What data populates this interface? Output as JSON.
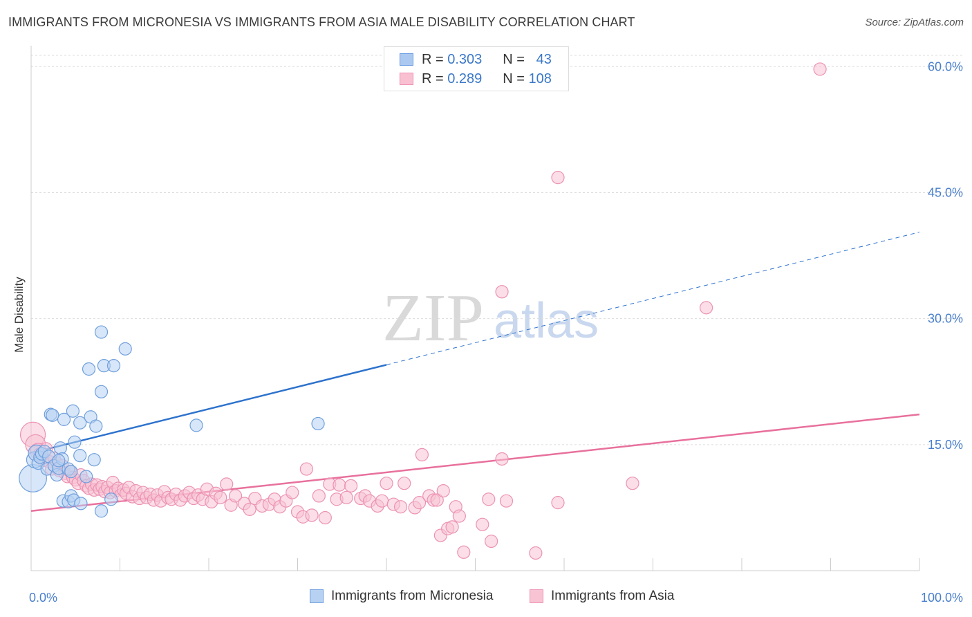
{
  "title": "IMMIGRANTS FROM MICRONESIA VS IMMIGRANTS FROM ASIA MALE DISABILITY CORRELATION CHART",
  "source": "Source: ZipAtlas.com",
  "watermark": {
    "zip": "ZIP",
    "atlas": "atlas"
  },
  "legend": {
    "r_label": "R =",
    "n_label": "N =",
    "items": [
      {
        "r": "0.303",
        "n": "43",
        "fill": "#aac8f0",
        "stroke": "#6a9ee0"
      },
      {
        "r": "0.289",
        "n": "108",
        "fill": "#f9c0d2",
        "stroke": "#ee8eb0"
      }
    ]
  },
  "colors": {
    "blue_fill": "#b7d1f3",
    "blue_stroke": "#6f9fdc",
    "blue_line": "#2d72cc",
    "pink_fill": "#f8c3d3",
    "pink_stroke": "#ec92b3",
    "pink_line": "#e8709c",
    "grid": "#dddddd",
    "tick_text": "#4a7fcc"
  },
  "chart_data": {
    "type": "scatter",
    "title": "IMMIGRANTS FROM MICRONESIA VS IMMIGRANTS FROM ASIA MALE DISABILITY CORRELATION CHART",
    "xlabel": "",
    "ylabel": "Male Disability",
    "xlim": [
      0,
      100
    ],
    "ylim": [
      0,
      62
    ],
    "x_tick_labels": [
      "0.0%",
      "100.0%"
    ],
    "y_ticks": [
      15,
      30,
      45,
      60
    ],
    "y_tick_labels": [
      "15.0%",
      "30.0%",
      "45.0%",
      "60.0%"
    ],
    "grid": true,
    "series": [
      {
        "name": "Immigrants from Micronesia",
        "r": 0.303,
        "n": 43,
        "trend": {
          "x0": 0,
          "y0": 14.0,
          "x1": 40,
          "y1": 24.5,
          "dashed_to_x": 100,
          "dashed_to_y": 40.3
        },
        "points": [
          [
            0.2,
            11.0,
            2.2
          ],
          [
            0.4,
            13.2,
            1.3
          ],
          [
            0.6,
            14.0,
            1.3
          ],
          [
            0.8,
            12.8,
            1.0
          ],
          [
            1.0,
            13.5,
            1.0
          ],
          [
            1.2,
            13.9,
            1.0
          ],
          [
            1.5,
            14.2,
            1.0
          ],
          [
            1.8,
            12.1,
            1.0
          ],
          [
            2.0,
            13.6,
            1.0
          ],
          [
            2.2,
            18.6,
            1.0
          ],
          [
            2.4,
            18.5,
            1.0
          ],
          [
            2.6,
            12.5,
            1.0
          ],
          [
            2.9,
            11.4,
            1.0
          ],
          [
            3.1,
            12.2,
            1.0
          ],
          [
            3.3,
            14.6,
            1.0
          ],
          [
            3.5,
            13.3,
            1.0
          ],
          [
            3.1,
            13.1,
            1.0
          ],
          [
            3.7,
            18.0,
            1.0
          ],
          [
            4.2,
            12.1,
            1.0
          ],
          [
            4.5,
            11.8,
            1.0
          ],
          [
            4.7,
            19.0,
            1.0
          ],
          [
            4.9,
            15.3,
            1.0
          ],
          [
            3.6,
            8.3,
            1.0
          ],
          [
            4.2,
            8.2,
            1.0
          ],
          [
            4.5,
            8.9,
            1.0
          ],
          [
            4.8,
            8.4,
            1.0
          ],
          [
            5.5,
            17.6,
            1.0
          ],
          [
            5.6,
            8.0,
            1.0
          ],
          [
            5.5,
            13.7,
            1.0
          ],
          [
            6.2,
            11.2,
            1.0
          ],
          [
            6.5,
            24.0,
            1.0
          ],
          [
            6.7,
            18.3,
            1.0
          ],
          [
            7.1,
            13.2,
            1.0
          ],
          [
            7.3,
            17.2,
            1.0
          ],
          [
            7.9,
            28.4,
            1.0
          ],
          [
            7.9,
            21.3,
            1.0
          ],
          [
            7.9,
            7.1,
            1.0
          ],
          [
            8.2,
            24.4,
            1.0
          ],
          [
            9.0,
            8.5,
            1.0
          ],
          [
            9.3,
            24.4,
            1.0
          ],
          [
            10.6,
            26.4,
            1.0
          ],
          [
            18.6,
            17.3,
            1.0
          ],
          [
            32.3,
            17.5,
            1.0
          ]
        ]
      },
      {
        "name": "Immigrants from Asia",
        "r": 0.289,
        "n": 108,
        "trend": {
          "x0": 0,
          "y0": 7.1,
          "x1": 100,
          "y1": 18.6
        },
        "points": [
          [
            0.2,
            16.2,
            2.0
          ],
          [
            0.5,
            15.0,
            1.6
          ],
          [
            0.8,
            14.2,
            1.3
          ],
          [
            1.1,
            13.8,
            1.2
          ],
          [
            1.4,
            13.2,
            1.1
          ],
          [
            1.7,
            14.5,
            1.0
          ],
          [
            2.0,
            13.0,
            1.0
          ],
          [
            2.3,
            12.1,
            1.0
          ],
          [
            2.6,
            13.4,
            1.0
          ],
          [
            2.9,
            12.8,
            1.0
          ],
          [
            3.2,
            11.9,
            1.0
          ],
          [
            3.5,
            12.5,
            1.0
          ],
          [
            3.8,
            11.6,
            1.0
          ],
          [
            4.1,
            11.2,
            1.0
          ],
          [
            4.4,
            11.8,
            1.0
          ],
          [
            4.7,
            11.1,
            1.0
          ],
          [
            5.0,
            10.8,
            1.0
          ],
          [
            5.3,
            10.4,
            1.0
          ],
          [
            5.6,
            11.4,
            1.0
          ],
          [
            5.9,
            10.7,
            1.0
          ],
          [
            6.2,
            10.1,
            1.0
          ],
          [
            6.5,
            9.8,
            1.0
          ],
          [
            6.8,
            10.3,
            1.0
          ],
          [
            7.1,
            9.6,
            1.0
          ],
          [
            7.4,
            10.2,
            1.0
          ],
          [
            7.7,
            9.7,
            1.0
          ],
          [
            8.0,
            10.0,
            1.0
          ],
          [
            8.3,
            9.4,
            1.0
          ],
          [
            8.6,
            9.9,
            1.0
          ],
          [
            8.9,
            9.3,
            1.0
          ],
          [
            9.2,
            10.5,
            1.0
          ],
          [
            9.5,
            9.5,
            1.0
          ],
          [
            9.8,
            9.8,
            1.0
          ],
          [
            10.1,
            9.0,
            1.0
          ],
          [
            10.4,
            9.6,
            1.0
          ],
          [
            10.7,
            9.2,
            1.0
          ],
          [
            11.0,
            9.9,
            1.0
          ],
          [
            11.4,
            8.8,
            1.0
          ],
          [
            11.8,
            9.5,
            1.0
          ],
          [
            12.2,
            8.6,
            1.0
          ],
          [
            12.6,
            9.3,
            1.0
          ],
          [
            13.0,
            8.7,
            1.0
          ],
          [
            13.4,
            9.1,
            1.0
          ],
          [
            13.8,
            8.4,
            1.0
          ],
          [
            14.2,
            9.0,
            1.0
          ],
          [
            14.6,
            8.3,
            1.0
          ],
          [
            15.0,
            9.4,
            1.0
          ],
          [
            15.4,
            8.7,
            1.0
          ],
          [
            15.8,
            8.5,
            1.0
          ],
          [
            16.3,
            9.1,
            1.0
          ],
          [
            16.8,
            8.4,
            1.0
          ],
          [
            17.3,
            8.9,
            1.0
          ],
          [
            17.8,
            9.3,
            1.0
          ],
          [
            18.3,
            8.6,
            1.0
          ],
          [
            18.8,
            9.0,
            1.0
          ],
          [
            19.3,
            8.5,
            1.0
          ],
          [
            19.8,
            9.7,
            1.0
          ],
          [
            20.3,
            8.2,
            1.0
          ],
          [
            20.8,
            9.2,
            1.0
          ],
          [
            21.3,
            8.7,
            1.0
          ],
          [
            22.0,
            10.3,
            1.0
          ],
          [
            22.5,
            7.8,
            1.0
          ],
          [
            23.0,
            8.9,
            1.0
          ],
          [
            24.0,
            8.0,
            1.0
          ],
          [
            24.6,
            7.3,
            1.0
          ],
          [
            25.2,
            8.6,
            1.0
          ],
          [
            26.0,
            7.7,
            1.0
          ],
          [
            26.8,
            7.9,
            1.0
          ],
          [
            27.4,
            8.5,
            1.0
          ],
          [
            28.0,
            7.6,
            1.0
          ],
          [
            28.7,
            8.3,
            1.0
          ],
          [
            29.4,
            9.3,
            1.0
          ],
          [
            30.0,
            7.0,
            1.0
          ],
          [
            30.6,
            6.4,
            1.0
          ],
          [
            31.0,
            12.1,
            1.0
          ],
          [
            31.6,
            6.6,
            1.0
          ],
          [
            32.4,
            8.9,
            1.0
          ],
          [
            33.1,
            6.3,
            1.0
          ],
          [
            33.6,
            10.3,
            1.0
          ],
          [
            34.4,
            8.5,
            1.0
          ],
          [
            34.7,
            10.2,
            1.0
          ],
          [
            35.5,
            8.7,
            1.0
          ],
          [
            36.0,
            10.1,
            1.0
          ],
          [
            37.1,
            8.6,
            1.0
          ],
          [
            37.6,
            8.9,
            1.0
          ],
          [
            38.1,
            8.3,
            1.0
          ],
          [
            39.0,
            7.7,
            1.0
          ],
          [
            39.5,
            8.3,
            1.0
          ],
          [
            40.0,
            10.4,
            1.0
          ],
          [
            40.8,
            7.9,
            1.0
          ],
          [
            41.6,
            7.6,
            1.0
          ],
          [
            42.0,
            10.4,
            1.0
          ],
          [
            43.2,
            7.5,
            1.0
          ],
          [
            43.7,
            8.1,
            1.0
          ],
          [
            44.0,
            13.8,
            1.0
          ],
          [
            44.8,
            8.9,
            1.0
          ],
          [
            45.3,
            8.4,
            1.0
          ],
          [
            45.7,
            8.4,
            1.0
          ],
          [
            46.1,
            4.2,
            1.0
          ],
          [
            46.4,
            9.5,
            1.0
          ],
          [
            46.9,
            5.0,
            1.0
          ],
          [
            47.4,
            5.2,
            1.0
          ],
          [
            47.8,
            7.6,
            1.0
          ],
          [
            48.2,
            6.5,
            1.0
          ],
          [
            48.7,
            2.2,
            1.0
          ],
          [
            50.8,
            5.5,
            1.0
          ],
          [
            51.5,
            8.5,
            1.0
          ],
          [
            51.8,
            3.5,
            1.0
          ],
          [
            53.0,
            13.3,
            1.0
          ],
          [
            53.5,
            8.3,
            1.0
          ],
          [
            56.8,
            2.1,
            1.0
          ],
          [
            59.3,
            8.1,
            1.0
          ],
          [
            59.3,
            46.8,
            1.0
          ],
          [
            53.0,
            33.2,
            1.0
          ],
          [
            67.7,
            10.4,
            1.0
          ],
          [
            76.0,
            31.3,
            1.0
          ],
          [
            88.8,
            59.7,
            1.0
          ]
        ]
      }
    ]
  },
  "bottom_legend": [
    {
      "label": "Immigrants from Micronesia",
      "fill": "#b7d1f3",
      "stroke": "#6f9fdc"
    },
    {
      "label": "Immigrants from Asia",
      "fill": "#f8c3d3",
      "stroke": "#ec92b3"
    }
  ]
}
